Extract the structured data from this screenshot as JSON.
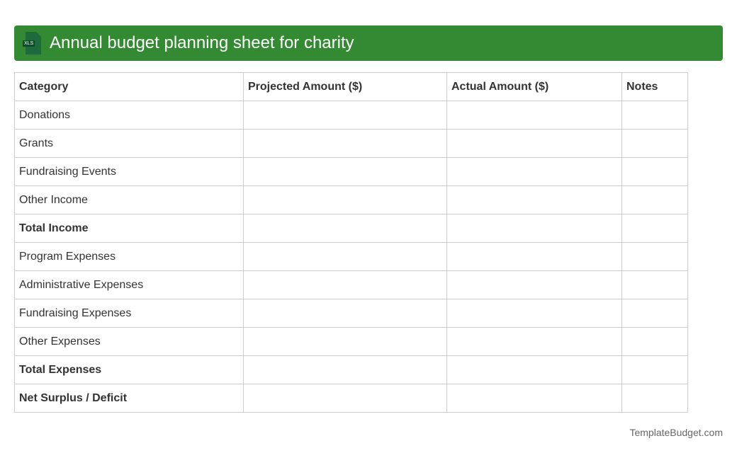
{
  "header": {
    "title": "Annual budget planning sheet for charity",
    "icon": "xls-file-icon",
    "icon_label": "XLS",
    "color": "#338a33"
  },
  "table": {
    "columns": [
      "Category",
      "Projected Amount ($)",
      "Actual Amount ($)",
      "Notes"
    ],
    "rows": [
      {
        "label": "Donations",
        "bold": false
      },
      {
        "label": "Grants",
        "bold": false
      },
      {
        "label": "Fundraising Events",
        "bold": false
      },
      {
        "label": "Other Income",
        "bold": false
      },
      {
        "label": "Total Income",
        "bold": true
      },
      {
        "label": "Program Expenses",
        "bold": false
      },
      {
        "label": "Administrative Expenses",
        "bold": false
      },
      {
        "label": "Fundraising Expenses",
        "bold": false
      },
      {
        "label": "Other Expenses",
        "bold": false
      },
      {
        "label": "Total Expenses",
        "bold": true
      },
      {
        "label": "Net Surplus / Deficit",
        "bold": true
      }
    ]
  },
  "footer": {
    "text": "TemplateBudget.com"
  }
}
